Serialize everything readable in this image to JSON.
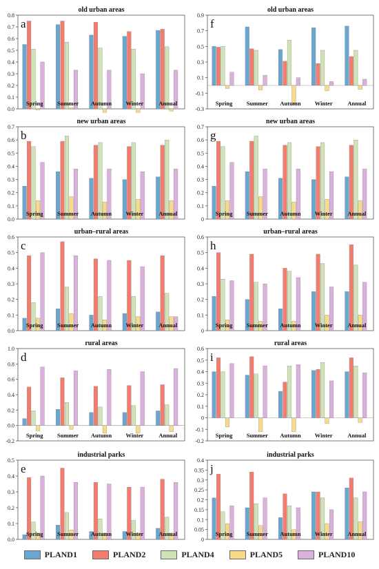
{
  "legend": {
    "items": [
      {
        "label": "PLAND1",
        "color": "#6aa6cf"
      },
      {
        "label": "PLAND2",
        "color": "#f27d6f"
      },
      {
        "label": "PLAND4",
        "color": "#cfe3b6"
      },
      {
        "label": "PLAND5",
        "color": "#f9d98a"
      },
      {
        "label": "PLAND10",
        "color": "#dcb0dc"
      }
    ]
  },
  "chart_data": [
    {
      "letter": "a",
      "type": "bar",
      "title": "old urban areas",
      "categories": [
        "Spring",
        "Summer",
        "Autumn",
        "Winter",
        "Annual"
      ],
      "ylim": [
        0,
        0.8
      ],
      "yticks": [
        "0.0",
        "0.1",
        "0.2",
        "0.3",
        "0.4",
        "0.5",
        "0.6",
        "0.7",
        "0.8"
      ],
      "series": [
        {
          "name": "PLAND1",
          "values": [
            0.55,
            0.72,
            0.63,
            0.62,
            0.67
          ]
        },
        {
          "name": "PLAND2",
          "values": [
            0.75,
            0.75,
            0.74,
            0.66,
            0.68
          ]
        },
        {
          "name": "PLAND4",
          "values": [
            0.51,
            0.57,
            0.52,
            0.51,
            0.53
          ]
        },
        {
          "name": "PLAND5",
          "values": [
            -0.01,
            0.01,
            -0.03,
            -0.03,
            -0.02
          ]
        },
        {
          "name": "PLAND10",
          "values": [
            0.4,
            0.33,
            0.33,
            0.3,
            0.33
          ]
        }
      ]
    },
    {
      "letter": "f",
      "type": "bar",
      "title": "old urban areas",
      "categories": [
        "Spring",
        "Summer",
        "Autumn",
        "Winter",
        "Annual"
      ],
      "ylim": [
        -0.3,
        0.9
      ],
      "yticks": [
        "-0.3",
        "-0.1",
        "0.1",
        "0.3",
        "0.5",
        "0.7",
        "0.9"
      ],
      "series": [
        {
          "name": "PLAND1",
          "values": [
            0.5,
            0.75,
            0.46,
            0.74,
            0.76
          ]
        },
        {
          "name": "PLAND2",
          "values": [
            0.49,
            0.47,
            0.31,
            0.28,
            0.37
          ]
        },
        {
          "name": "PLAND4",
          "values": [
            0.5,
            0.45,
            0.58,
            0.45,
            0.45
          ]
        },
        {
          "name": "PLAND5",
          "values": [
            -0.04,
            -0.06,
            -0.24,
            -0.07,
            -0.05
          ]
        },
        {
          "name": "PLAND10",
          "values": [
            0.17,
            0.13,
            0.1,
            0.05,
            0.08
          ]
        }
      ]
    },
    {
      "letter": "b",
      "type": "bar",
      "title": "new urban areas",
      "categories": [
        "Spring",
        "Summer",
        "Autumn",
        "Winter",
        "Annual"
      ],
      "ylim": [
        0,
        0.7
      ],
      "yticks": [
        "0.0",
        "0.1",
        "0.2",
        "0.3",
        "0.4",
        "0.5",
        "0.6",
        "0.7"
      ],
      "series": [
        {
          "name": "PLAND1",
          "values": [
            0.25,
            0.36,
            0.31,
            0.3,
            0.32
          ]
        },
        {
          "name": "PLAND2",
          "values": [
            0.59,
            0.59,
            0.56,
            0.55,
            0.56
          ]
        },
        {
          "name": "PLAND4",
          "values": [
            0.55,
            0.63,
            0.58,
            0.58,
            0.6
          ]
        },
        {
          "name": "PLAND5",
          "values": [
            0.14,
            0.17,
            0.13,
            0.15,
            0.14
          ]
        },
        {
          "name": "PLAND10",
          "values": [
            0.43,
            0.38,
            0.38,
            0.36,
            0.38
          ]
        }
      ]
    },
    {
      "letter": "g",
      "type": "bar",
      "title": "new urban areas",
      "categories": [
        "Spring",
        "Summer",
        "Autumn",
        "Winter",
        "Annual"
      ],
      "ylim": [
        0,
        0.7
      ],
      "yticks": [
        "0",
        "0.1",
        "0.2",
        "0.3",
        "0.4",
        "0.5",
        "0.6",
        "0.7"
      ],
      "series": [
        {
          "name": "PLAND1",
          "values": [
            0.25,
            0.36,
            0.31,
            0.3,
            0.32
          ]
        },
        {
          "name": "PLAND2",
          "values": [
            0.59,
            0.59,
            0.56,
            0.55,
            0.56
          ]
        },
        {
          "name": "PLAND4",
          "values": [
            0.55,
            0.63,
            0.58,
            0.58,
            0.6
          ]
        },
        {
          "name": "PLAND5",
          "values": [
            0.14,
            0.17,
            0.13,
            0.15,
            0.14
          ]
        },
        {
          "name": "PLAND10",
          "values": [
            0.43,
            0.38,
            0.38,
            0.36,
            0.38
          ]
        }
      ]
    },
    {
      "letter": "c",
      "type": "bar",
      "title": "urban–rural areas",
      "categories": [
        "Spring",
        "Summer",
        "Autumn",
        "Winter",
        "Annual"
      ],
      "ylim": [
        0,
        0.6
      ],
      "yticks": [
        "0.0",
        "0.1",
        "0.2",
        "0.3",
        "0.4",
        "0.5",
        "0.6"
      ],
      "series": [
        {
          "name": "PLAND1",
          "values": [
            0.08,
            0.14,
            0.1,
            0.11,
            0.12
          ]
        },
        {
          "name": "PLAND2",
          "values": [
            0.48,
            0.57,
            0.46,
            0.45,
            0.48
          ]
        },
        {
          "name": "PLAND4",
          "values": [
            0.18,
            0.28,
            0.22,
            0.22,
            0.24
          ]
        },
        {
          "name": "PLAND5",
          "values": [
            0.08,
            0.11,
            0.07,
            0.09,
            0.09
          ]
        },
        {
          "name": "PLAND10",
          "values": [
            0.5,
            0.48,
            0.45,
            0.41,
            0.09
          ]
        }
      ]
    },
    {
      "letter": "h",
      "type": "bar",
      "title": "urban–rural areas",
      "categories": [
        "Spring",
        "Summer",
        "Autumn",
        "Winter",
        "Annual"
      ],
      "ylim": [
        0,
        0.6
      ],
      "yticks": [
        "0",
        "0.1",
        "0.2",
        "0.3",
        "0.4",
        "0.5",
        "0.6"
      ],
      "series": [
        {
          "name": "PLAND1",
          "values": [
            0.22,
            0.2,
            0.14,
            0.25,
            0.25
          ]
        },
        {
          "name": "PLAND2",
          "values": [
            0.5,
            0.49,
            0.4,
            0.49,
            0.55
          ]
        },
        {
          "name": "PLAND4",
          "values": [
            0.33,
            0.31,
            0.38,
            0.43,
            0.42
          ]
        },
        {
          "name": "PLAND5",
          "values": [
            0.07,
            0.06,
            0.06,
            0.1,
            0.1
          ]
        },
        {
          "name": "PLAND10",
          "values": [
            0.32,
            0.3,
            0.34,
            0.28,
            0.31
          ]
        }
      ]
    },
    {
      "letter": "d",
      "type": "bar",
      "title": "rural areas",
      "categories": [
        "Spring",
        "Summer",
        "Autumn",
        "Winter",
        "Annual"
      ],
      "ylim": [
        -0.2,
        1.0
      ],
      "yticks": [
        "-0.2",
        "0.0",
        "0.2",
        "0.4",
        "0.6",
        "0.8",
        "1.0"
      ],
      "series": [
        {
          "name": "PLAND1",
          "values": [
            0.09,
            0.21,
            0.17,
            0.17,
            0.19
          ]
        },
        {
          "name": "PLAND2",
          "values": [
            0.5,
            0.62,
            0.51,
            0.52,
            0.53
          ]
        },
        {
          "name": "PLAND4",
          "values": [
            0.19,
            0.3,
            0.24,
            0.26,
            0.27
          ]
        },
        {
          "name": "PLAND5",
          "values": [
            -0.07,
            -0.05,
            -0.1,
            -0.1,
            -0.08
          ]
        },
        {
          "name": "PLAND10",
          "values": [
            0.76,
            0.71,
            0.73,
            0.7,
            0.74
          ]
        }
      ]
    },
    {
      "letter": "i",
      "type": "bar",
      "title": "rural areas",
      "categories": [
        "Spring",
        "Summer",
        "Autumn",
        "Winter",
        "Annual"
      ],
      "ylim": [
        -0.2,
        0.6
      ],
      "yticks": [
        "-0.2",
        "-0.1",
        "0",
        "0.1",
        "0.2",
        "0.3",
        "0.4",
        "0.5",
        "0.6"
      ],
      "series": [
        {
          "name": "PLAND1",
          "values": [
            0.4,
            0.37,
            0.23,
            0.41,
            0.4
          ]
        },
        {
          "name": "PLAND2",
          "values": [
            0.52,
            0.53,
            0.31,
            0.42,
            0.52
          ]
        },
        {
          "name": "PLAND4",
          "values": [
            0.4,
            0.38,
            0.45,
            0.48,
            0.45
          ]
        },
        {
          "name": "PLAND5",
          "values": [
            -0.08,
            -0.12,
            -0.12,
            -0.05,
            -0.04
          ]
        },
        {
          "name": "PLAND10",
          "values": [
            0.47,
            0.45,
            0.46,
            0.32,
            0.39
          ]
        }
      ]
    },
    {
      "letter": "e",
      "type": "bar",
      "title": "industrial parks",
      "categories": [
        "Spring",
        "Summer",
        "Autumn",
        "Winter",
        "Annual"
      ],
      "ylim": [
        0,
        0.5
      ],
      "yticks": [
        "0.0",
        "0.1",
        "0.2",
        "0.3",
        "0.4",
        "0.5"
      ],
      "series": [
        {
          "name": "PLAND1",
          "values": [
            0.03,
            0.09,
            0.05,
            0.05,
            0.07
          ]
        },
        {
          "name": "PLAND2",
          "values": [
            0.39,
            0.45,
            0.36,
            0.33,
            0.38
          ]
        },
        {
          "name": "PLAND4",
          "values": [
            0.11,
            0.17,
            0.13,
            0.12,
            0.14
          ]
        },
        {
          "name": "PLAND5",
          "values": [
            0.04,
            0.06,
            0.04,
            0.04,
            0.04
          ]
        },
        {
          "name": "PLAND10",
          "values": [
            0.4,
            0.36,
            0.35,
            0.33,
            0.36
          ]
        }
      ]
    },
    {
      "letter": "j",
      "type": "bar",
      "title": "industrial parks",
      "categories": [
        "Spring",
        "Summer",
        "Autumn",
        "Winter",
        "Annual"
      ],
      "ylim": [
        0,
        0.4
      ],
      "yticks": [
        "0",
        "0.05",
        "0.1",
        "0.15",
        "0.2",
        "0.25",
        "0.3",
        "0.35",
        "0.4"
      ],
      "series": [
        {
          "name": "PLAND1",
          "values": [
            0.21,
            0.16,
            0.11,
            0.24,
            0.26
          ]
        },
        {
          "name": "PLAND2",
          "values": [
            0.33,
            0.34,
            0.23,
            0.24,
            0.31
          ]
        },
        {
          "name": "PLAND4",
          "values": [
            0.14,
            0.18,
            0.17,
            0.21,
            0.21
          ]
        },
        {
          "name": "PLAND5",
          "values": [
            0.08,
            0.07,
            0.05,
            0.08,
            0.09
          ]
        },
        {
          "name": "PLAND10",
          "values": [
            0.17,
            0.21,
            0.16,
            0.15,
            0.24
          ]
        }
      ]
    }
  ]
}
